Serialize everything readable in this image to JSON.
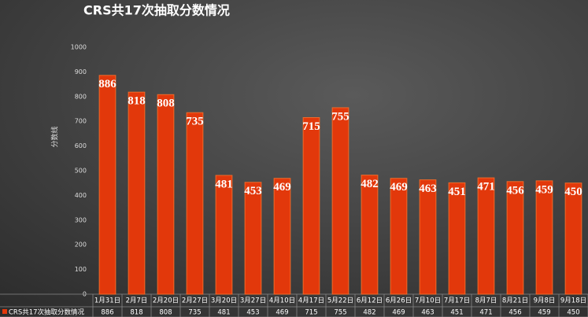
{
  "chart_data": {
    "type": "bar",
    "title": "CRS共17次抽取分数情况",
    "y_label": "分数线",
    "categories": [
      "1月31日",
      "2月7日",
      "2月20日",
      "2月27日",
      "3月20日",
      "3月27日",
      "4月10日",
      "4月17日",
      "5月22日",
      "6月12日",
      "6月26日",
      "7月10日",
      "7月17日",
      "8月7日",
      "8月21日",
      "9月8日",
      "9月18日"
    ],
    "series": [
      {
        "name": "CRS共17次抽取分数情况",
        "color": "#e2380b",
        "values": [
          886,
          818,
          808,
          735,
          481,
          453,
          469,
          715,
          755,
          482,
          469,
          463,
          451,
          471,
          456,
          459,
          450
        ]
      }
    ],
    "ylim": [
      0,
      1000
    ],
    "yticks": [
      0,
      100,
      200,
      300,
      400,
      500,
      600,
      700,
      800,
      900,
      1000
    ],
    "grid": false
  }
}
